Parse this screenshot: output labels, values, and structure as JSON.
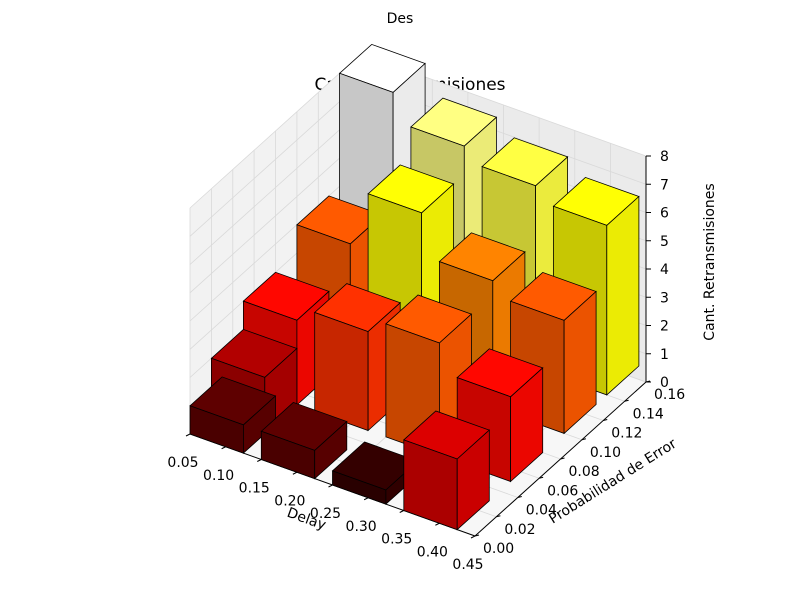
{
  "figure": {
    "suptitle": "Des"
  },
  "chart_data": {
    "type": "bar3d",
    "title": "Cant. Retransmisiones",
    "xlabel": "Delay",
    "ylabel": "Probabilidad de Error",
    "zlabel": "Cant. Retransmisiones",
    "xlim": [
      0.05,
      0.45
    ],
    "ylim": [
      0.0,
      0.16
    ],
    "zlim": [
      0,
      8
    ],
    "x_ticks": [
      "0.05",
      "0.10",
      "0.15",
      "0.20",
      "0.25",
      "0.30",
      "0.35",
      "0.40",
      "0.45"
    ],
    "y_ticks": [
      "0.00",
      "0.02",
      "0.04",
      "0.06",
      "0.08",
      "0.10",
      "0.12",
      "0.14",
      "0.16"
    ],
    "z_ticks": [
      "0",
      "1",
      "2",
      "3",
      "4",
      "5",
      "6",
      "7",
      "8"
    ],
    "grid": true,
    "colormap": "hot",
    "bars": [
      {
        "x": 0.05,
        "y": 0.0,
        "value": 1.0
      },
      {
        "x": 0.05,
        "y": 0.02,
        "value": 2.0
      },
      {
        "x": 0.05,
        "y": 0.05,
        "value": 3.0
      },
      {
        "x": 0.05,
        "y": 0.1,
        "value": 4.0
      },
      {
        "x": 0.05,
        "y": 0.14,
        "value": 8.0
      },
      {
        "x": 0.15,
        "y": 0.0,
        "value": 1.0
      },
      {
        "x": 0.15,
        "y": 0.05,
        "value": 3.5
      },
      {
        "x": 0.15,
        "y": 0.1,
        "value": 6.0
      },
      {
        "x": 0.15,
        "y": 0.14,
        "value": 7.0
      },
      {
        "x": 0.25,
        "y": 0.0,
        "value": 0.5
      },
      {
        "x": 0.25,
        "y": 0.05,
        "value": 4.0
      },
      {
        "x": 0.25,
        "y": 0.1,
        "value": 4.5
      },
      {
        "x": 0.25,
        "y": 0.14,
        "value": 6.5
      },
      {
        "x": 0.35,
        "y": 0.0,
        "value": 2.5
      },
      {
        "x": 0.35,
        "y": 0.05,
        "value": 3.0
      },
      {
        "x": 0.35,
        "y": 0.1,
        "value": 4.0
      },
      {
        "x": 0.35,
        "y": 0.14,
        "value": 6.0
      }
    ]
  }
}
